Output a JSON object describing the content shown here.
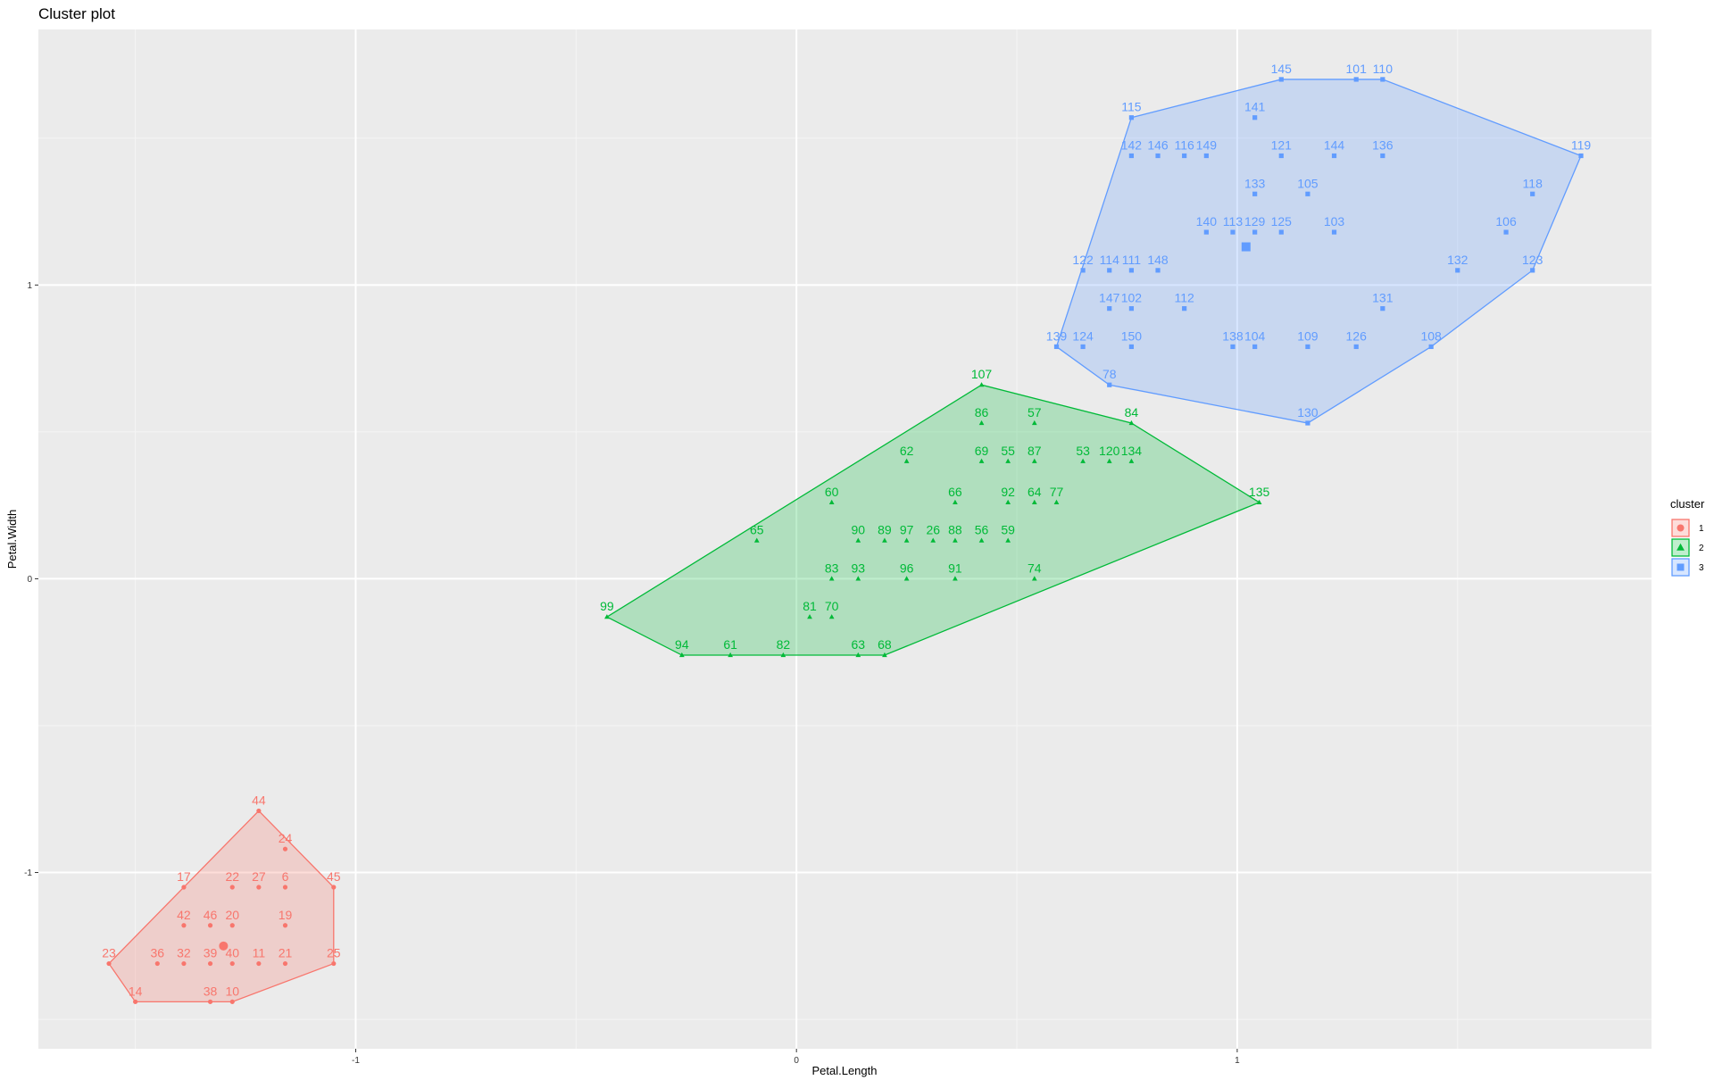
{
  "chart_data": {
    "type": "scatter",
    "title": "Cluster plot",
    "xlabel": "Petal.Length",
    "ylabel": "Petal.Width",
    "xlim": [
      -1.72,
      1.94
    ],
    "ylim": [
      -1.6,
      1.87
    ],
    "x_ticks": [
      {
        "value": -1,
        "label": "-1"
      },
      {
        "value": 0,
        "label": "0"
      },
      {
        "value": 1,
        "label": "1"
      }
    ],
    "y_ticks": [
      {
        "value": -1,
        "label": "-1"
      },
      {
        "value": 0,
        "label": "0"
      },
      {
        "value": 1,
        "label": "1"
      }
    ],
    "grid": true,
    "legend": {
      "title": "cluster",
      "position": "right",
      "entries": [
        "1",
        "2",
        "3"
      ]
    },
    "clusters": [
      {
        "name": "1",
        "color": "#F8766D",
        "fill": "#f0cdcd",
        "shape": "circle",
        "centroid": [
          -1.3,
          -1.25
        ],
        "hull": [
          [
            -1.56,
            -1.31
          ],
          [
            -1.5,
            -1.44
          ],
          [
            -1.28,
            -1.44
          ],
          [
            -1.05,
            -1.31
          ],
          [
            -1.05,
            -1.05
          ],
          [
            -1.22,
            -0.79
          ]
        ],
        "points": [
          {
            "id": "44",
            "x": -1.22,
            "y": -0.79
          },
          {
            "id": "24",
            "x": -1.16,
            "y": -0.92
          },
          {
            "id": "17",
            "x": -1.39,
            "y": -1.05
          },
          {
            "id": "22",
            "x": -1.28,
            "y": -1.05
          },
          {
            "id": "27",
            "x": -1.22,
            "y": -1.05
          },
          {
            "id": "6",
            "x": -1.16,
            "y": -1.05
          },
          {
            "id": "45",
            "x": -1.05,
            "y": -1.05
          },
          {
            "id": "42",
            "x": -1.39,
            "y": -1.18
          },
          {
            "id": "46",
            "x": -1.33,
            "y": -1.18
          },
          {
            "id": "20",
            "x": -1.28,
            "y": -1.18
          },
          {
            "id": "19",
            "x": -1.16,
            "y": -1.18
          },
          {
            "id": "23",
            "x": -1.56,
            "y": -1.31
          },
          {
            "id": "36",
            "x": -1.45,
            "y": -1.31
          },
          {
            "id": "32",
            "x": -1.39,
            "y": -1.31
          },
          {
            "id": "39",
            "x": -1.33,
            "y": -1.31
          },
          {
            "id": "40",
            "x": -1.28,
            "y": -1.31
          },
          {
            "id": "11",
            "x": -1.22,
            "y": -1.31
          },
          {
            "id": "21",
            "x": -1.16,
            "y": -1.31
          },
          {
            "id": "25",
            "x": -1.05,
            "y": -1.31
          },
          {
            "id": "14",
            "x": -1.5,
            "y": -1.44
          },
          {
            "id": "38",
            "x": -1.33,
            "y": -1.44
          },
          {
            "id": "10",
            "x": -1.28,
            "y": -1.44
          }
        ]
      },
      {
        "name": "2",
        "color": "#00BA38",
        "fill": "#bce2c8",
        "shape": "triangle",
        "centroid": null,
        "hull": [
          [
            -0.43,
            -0.13
          ],
          [
            -0.26,
            -0.26
          ],
          [
            0.2,
            -0.26
          ],
          [
            1.05,
            0.26
          ],
          [
            0.76,
            0.53
          ],
          [
            0.42,
            0.66
          ]
        ],
        "points": [
          {
            "id": "107",
            "x": 0.42,
            "y": 0.66
          },
          {
            "id": "86",
            "x": 0.42,
            "y": 0.53
          },
          {
            "id": "57",
            "x": 0.54,
            "y": 0.53
          },
          {
            "id": "84",
            "x": 0.76,
            "y": 0.53
          },
          {
            "id": "62",
            "x": 0.25,
            "y": 0.4
          },
          {
            "id": "69",
            "x": 0.42,
            "y": 0.4
          },
          {
            "id": "55",
            "x": 0.48,
            "y": 0.4
          },
          {
            "id": "87",
            "x": 0.54,
            "y": 0.4
          },
          {
            "id": "53",
            "x": 0.65,
            "y": 0.4
          },
          {
            "id": "120",
            "x": 0.71,
            "y": 0.4
          },
          {
            "id": "134",
            "x": 0.76,
            "y": 0.4
          },
          {
            "id": "60",
            "x": 0.08,
            "y": 0.26
          },
          {
            "id": "66",
            "x": 0.36,
            "y": 0.26
          },
          {
            "id": "92",
            "x": 0.48,
            "y": 0.26
          },
          {
            "id": "64",
            "x": 0.54,
            "y": 0.26
          },
          {
            "id": "77",
            "x": 0.59,
            "y": 0.26
          },
          {
            "id": "135",
            "x": 1.05,
            "y": 0.26
          },
          {
            "id": "65",
            "x": -0.09,
            "y": 0.13
          },
          {
            "id": "90",
            "x": 0.14,
            "y": 0.13
          },
          {
            "id": "89",
            "x": 0.2,
            "y": 0.13
          },
          {
            "id": "97",
            "x": 0.25,
            "y": 0.13
          },
          {
            "id": "26",
            "x": 0.31,
            "y": 0.13
          },
          {
            "id": "88",
            "x": 0.36,
            "y": 0.13
          },
          {
            "id": "56",
            "x": 0.42,
            "y": 0.13
          },
          {
            "id": "59",
            "x": 0.48,
            "y": 0.13
          },
          {
            "id": "83",
            "x": 0.08,
            "y": 0.0
          },
          {
            "id": "93",
            "x": 0.14,
            "y": 0.0
          },
          {
            "id": "96",
            "x": 0.25,
            "y": 0.0
          },
          {
            "id": "91",
            "x": 0.36,
            "y": 0.0
          },
          {
            "id": "74",
            "x": 0.54,
            "y": 0.0
          },
          {
            "id": "99",
            "x": -0.43,
            "y": -0.13
          },
          {
            "id": "81",
            "x": 0.03,
            "y": -0.13
          },
          {
            "id": "70",
            "x": 0.08,
            "y": -0.13
          },
          {
            "id": "94",
            "x": -0.26,
            "y": -0.26
          },
          {
            "id": "61",
            "x": -0.15,
            "y": -0.26
          },
          {
            "id": "82",
            "x": -0.03,
            "y": -0.26
          },
          {
            "id": "63",
            "x": 0.14,
            "y": -0.26
          },
          {
            "id": "68",
            "x": 0.2,
            "y": -0.26
          }
        ]
      },
      {
        "name": "3",
        "color": "#619CFF",
        "fill": "#cbdaf0",
        "shape": "square",
        "centroid": [
          1.02,
          1.13
        ],
        "hull": [
          [
            0.59,
            0.79
          ],
          [
            0.71,
            0.66
          ],
          [
            1.16,
            0.53
          ],
          [
            1.44,
            0.79
          ],
          [
            1.67,
            1.05
          ],
          [
            1.78,
            1.44
          ],
          [
            1.33,
            1.7
          ],
          [
            1.1,
            1.7
          ],
          [
            0.76,
            1.57
          ]
        ],
        "points": [
          {
            "id": "145",
            "x": 1.1,
            "y": 1.7
          },
          {
            "id": "101",
            "x": 1.27,
            "y": 1.7
          },
          {
            "id": "110",
            "x": 1.33,
            "y": 1.7
          },
          {
            "id": "115",
            "x": 0.76,
            "y": 1.57
          },
          {
            "id": "141",
            "x": 1.04,
            "y": 1.57
          },
          {
            "id": "142",
            "x": 0.76,
            "y": 1.44
          },
          {
            "id": "146",
            "x": 0.82,
            "y": 1.44
          },
          {
            "id": "116",
            "x": 0.88,
            "y": 1.44
          },
          {
            "id": "149",
            "x": 0.93,
            "y": 1.44
          },
          {
            "id": "121",
            "x": 1.1,
            "y": 1.44
          },
          {
            "id": "144",
            "x": 1.22,
            "y": 1.44
          },
          {
            "id": "136",
            "x": 1.33,
            "y": 1.44
          },
          {
            "id": "119",
            "x": 1.78,
            "y": 1.44
          },
          {
            "id": "133",
            "x": 1.04,
            "y": 1.31
          },
          {
            "id": "105",
            "x": 1.16,
            "y": 1.31
          },
          {
            "id": "118",
            "x": 1.67,
            "y": 1.31
          },
          {
            "id": "140",
            "x": 0.93,
            "y": 1.18
          },
          {
            "id": "113",
            "x": 0.99,
            "y": 1.18
          },
          {
            "id": "129",
            "x": 1.04,
            "y": 1.18
          },
          {
            "id": "125",
            "x": 1.1,
            "y": 1.18
          },
          {
            "id": "103",
            "x": 1.22,
            "y": 1.18
          },
          {
            "id": "106",
            "x": 1.61,
            "y": 1.18
          },
          {
            "id": "122",
            "x": 0.65,
            "y": 1.05
          },
          {
            "id": "114",
            "x": 0.71,
            "y": 1.05
          },
          {
            "id": "111",
            "x": 0.76,
            "y": 1.05
          },
          {
            "id": "148",
            "x": 0.82,
            "y": 1.05
          },
          {
            "id": "132",
            "x": 1.5,
            "y": 1.05
          },
          {
            "id": "123",
            "x": 1.67,
            "y": 1.05
          },
          {
            "id": "147",
            "x": 0.71,
            "y": 0.92
          },
          {
            "id": "102",
            "x": 0.76,
            "y": 0.92
          },
          {
            "id": "112",
            "x": 0.88,
            "y": 0.92
          },
          {
            "id": "131",
            "x": 1.33,
            "y": 0.92
          },
          {
            "id": "139",
            "x": 0.59,
            "y": 0.79
          },
          {
            "id": "124",
            "x": 0.65,
            "y": 0.79
          },
          {
            "id": "150",
            "x": 0.76,
            "y": 0.79
          },
          {
            "id": "138",
            "x": 0.99,
            "y": 0.79
          },
          {
            "id": "104",
            "x": 1.04,
            "y": 0.79
          },
          {
            "id": "109",
            "x": 1.16,
            "y": 0.79
          },
          {
            "id": "126",
            "x": 1.27,
            "y": 0.79
          },
          {
            "id": "108",
            "x": 1.44,
            "y": 0.79
          },
          {
            "id": "78",
            "x": 0.71,
            "y": 0.66
          },
          {
            "id": "130",
            "x": 1.16,
            "y": 0.53
          }
        ]
      }
    ]
  }
}
